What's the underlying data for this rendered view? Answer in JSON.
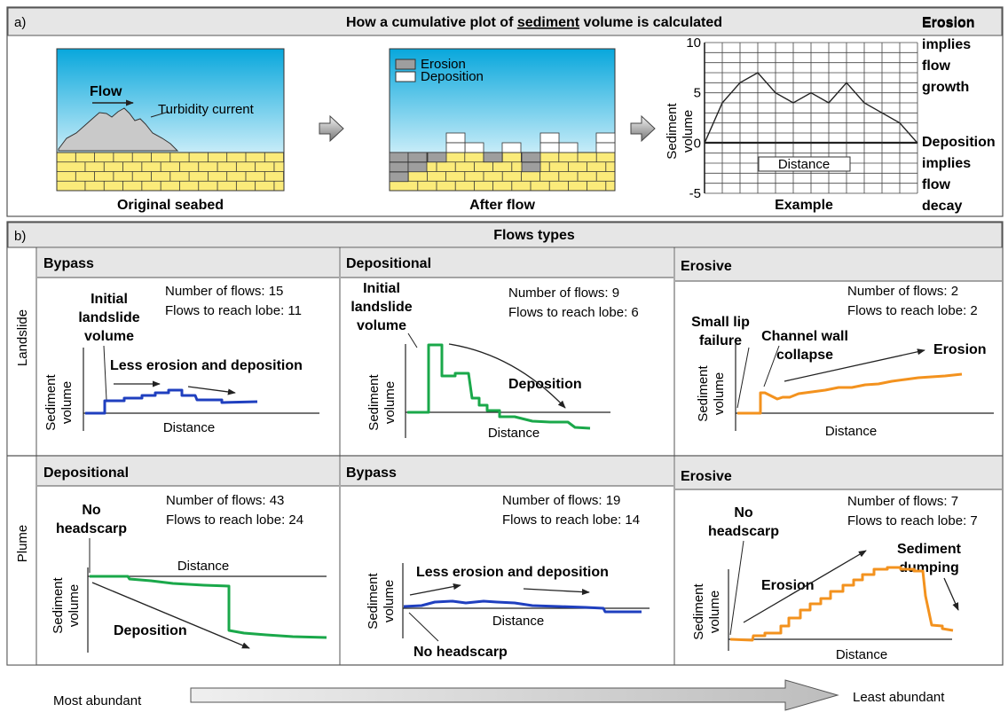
{
  "panel_a": {
    "letter": "a)",
    "title_pre": "How a cumulative plot of ",
    "title_u": "sediment",
    "title_post": " volume is calculated",
    "seabed": {
      "caption": "Original seabed",
      "flow_label": "Flow",
      "turbidity_label": "Turbidity current"
    },
    "after": {
      "caption": "After flow",
      "legend_erosion": "Erosion",
      "legend_deposition": "Deposition"
    },
    "example": {
      "caption": "Example",
      "xlabel": "Distance",
      "ylabel_1": "Sediment",
      "ylabel_2": "volume",
      "ticks": [
        "10",
        "5",
        "0",
        "-5"
      ],
      "ylim": [
        -5,
        10
      ],
      "values": [
        0,
        4,
        6,
        7,
        5,
        4,
        5,
        4,
        6,
        4,
        3,
        2,
        0
      ],
      "note_top": [
        "Erosion",
        "implies",
        "flow",
        "growth"
      ],
      "note_bottom": [
        "Deposition",
        "implies",
        "flow",
        "decay"
      ],
      "colors": {
        "bg": "#ffffff",
        "grid": "#444444"
      }
    }
  },
  "panel_b": {
    "letter": "b)",
    "title": "Flows types",
    "row_landslide": "Landslide",
    "row_plume": "Plume",
    "xlabel": "Distance",
    "ylabel_1": "Sediment",
    "ylabel_2": "volume",
    "cells": {
      "landslide_bypass": {
        "title": "Bypass",
        "stats_1": "Number of flows: 15",
        "stats_2": "Flows to reach lobe: 11",
        "ann_1": "Initial",
        "ann_2": "landslide",
        "ann_3": "volume",
        "ann_4": "Less erosion and deposition",
        "color": "#1f3fbf"
      },
      "landslide_depositional": {
        "title": "Depositional",
        "stats_1": "Number of flows: 9",
        "stats_2": "Flows to reach lobe: 6",
        "ann_1": "Initial",
        "ann_2": "landslide",
        "ann_3": "volume",
        "ann_4": "Deposition",
        "color": "#1aa84a"
      },
      "landslide_erosive": {
        "title": "Erosive",
        "stats_1": "Number of flows: 2",
        "stats_2": "Flows to reach lobe: 2",
        "ann_1": "Small lip",
        "ann_2": "failure",
        "ann_3": "Channel wall",
        "ann_4": "collapse",
        "ann_5": "Erosion",
        "color": "#f3921e"
      },
      "plume_depositional": {
        "title": "Depositional",
        "stats_1": "Number of flows: 43",
        "stats_2": "Flows to reach lobe: 24",
        "ann_1": "No",
        "ann_2": "headscarp",
        "ann_3": "Deposition",
        "color": "#1aa84a"
      },
      "plume_bypass": {
        "title": "Bypass",
        "stats_1": "Number of flows: 19",
        "stats_2": "Flows to reach lobe: 14",
        "ann_1": "Less erosion and deposition",
        "ann_2": "No headscarp",
        "color": "#1f3fbf"
      },
      "plume_erosive": {
        "title": "Erosive",
        "stats_1": "Number of flows: 7",
        "stats_2": "Flows to reach lobe: 7",
        "ann_1": "No",
        "ann_2": "headscarp",
        "ann_3": "Erosion",
        "ann_4": "Sediment",
        "ann_5": "dumping",
        "color": "#f3921e"
      }
    }
  },
  "abundance": {
    "left": "Most abundant",
    "right": "Least abundant"
  },
  "colors": {
    "sea_top": "#0aa6d8",
    "sea_bottom": "#bfe9f7",
    "sand": "#fbeb7a",
    "header_bg": "#e6e6e6",
    "arrow_grey": "#999999"
  }
}
